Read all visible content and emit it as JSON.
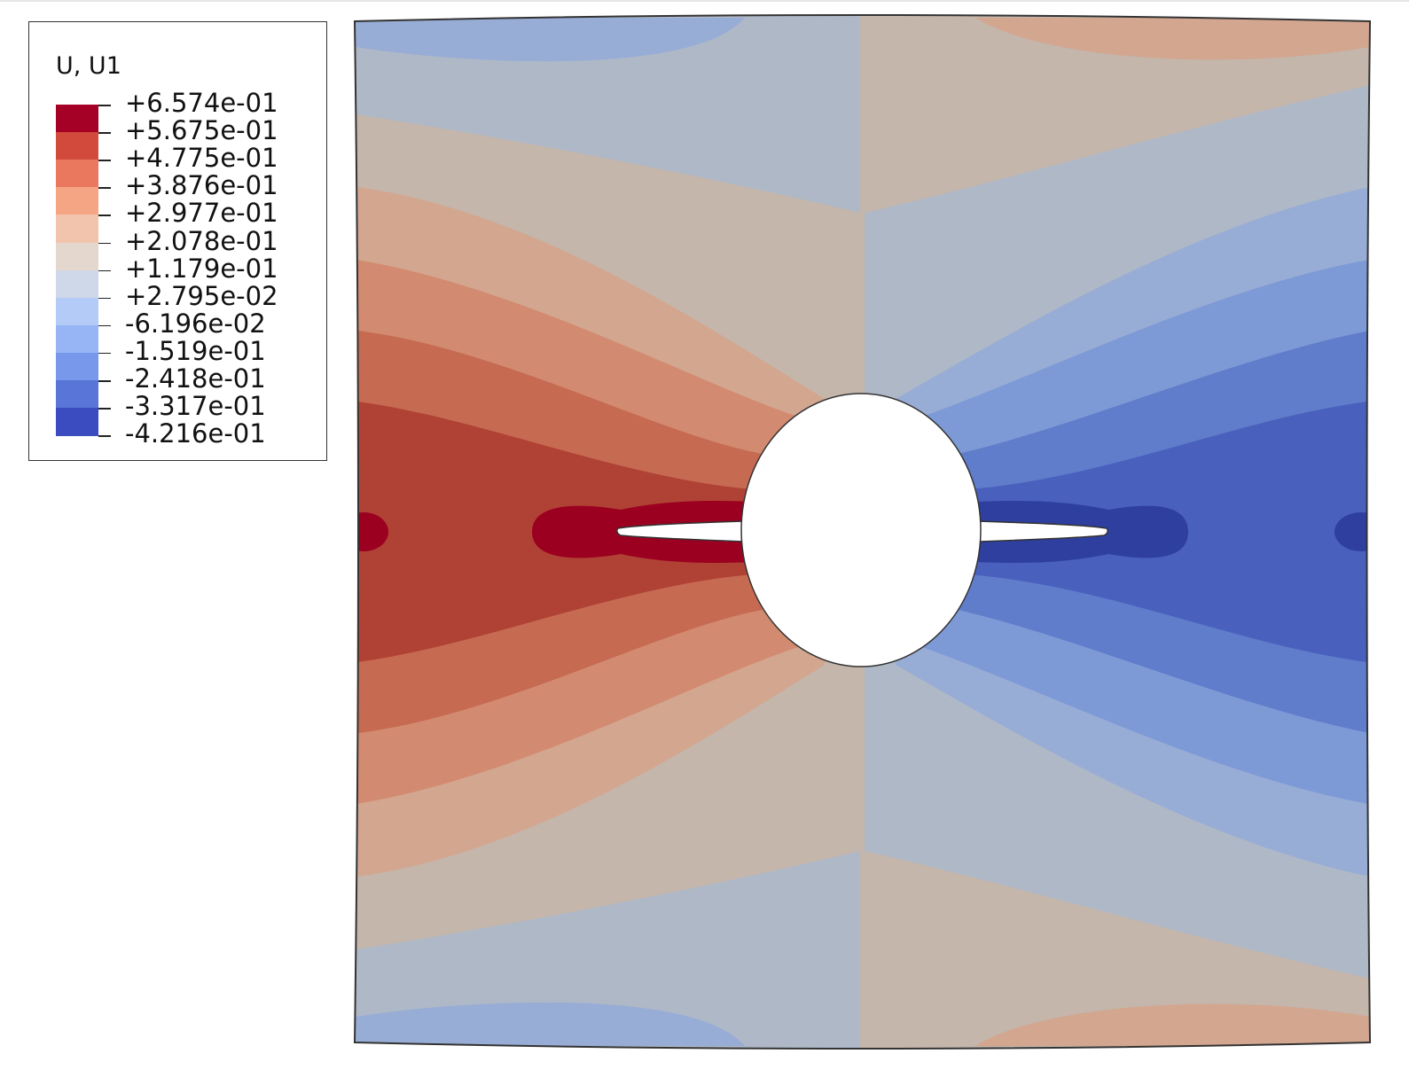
{
  "legend": {
    "title": "U, U1",
    "levels": [
      {
        "label": "+6.574e-01",
        "color": "#a50026"
      },
      {
        "label": "+5.675e-01",
        "color": "#d14a3c"
      },
      {
        "label": "+4.775e-01",
        "color": "#e9785f"
      },
      {
        "label": "+3.876e-01",
        "color": "#f5a484"
      },
      {
        "label": "+2.977e-01",
        "color": "#f3c4ad"
      },
      {
        "label": "+2.078e-01",
        "color": "#e4d7cd"
      },
      {
        "label": "+1.179e-01",
        "color": "#ced8e8"
      },
      {
        "label": "+2.795e-02",
        "color": "#b4cbf7"
      },
      {
        "label": "-6.196e-02",
        "color": "#97b5f4"
      },
      {
        "label": "-1.519e-01",
        "color": "#7898ec"
      },
      {
        "label": "-2.418e-01",
        "color": "#5a75d8"
      },
      {
        "label": "-3.317e-01",
        "color": "#3e52c3"
      },
      {
        "label": "-4.216e-01",
        "color": ""
      }
    ]
  },
  "contour_colors": {
    "red_peak": "#9b0020",
    "red_dark": "#b04235",
    "red_mid": "#c66a52",
    "red_light": "#d28b70",
    "peach": "#d3a690",
    "tan": "#c4b6ab",
    "gray_blue": "#afb8c7",
    "light_blue": "#98add5",
    "blue_mid": "#7e9ad6",
    "blue": "#607dcb",
    "blue_dark": "#4961bd",
    "blue_peak": "#2f3fa0"
  }
}
